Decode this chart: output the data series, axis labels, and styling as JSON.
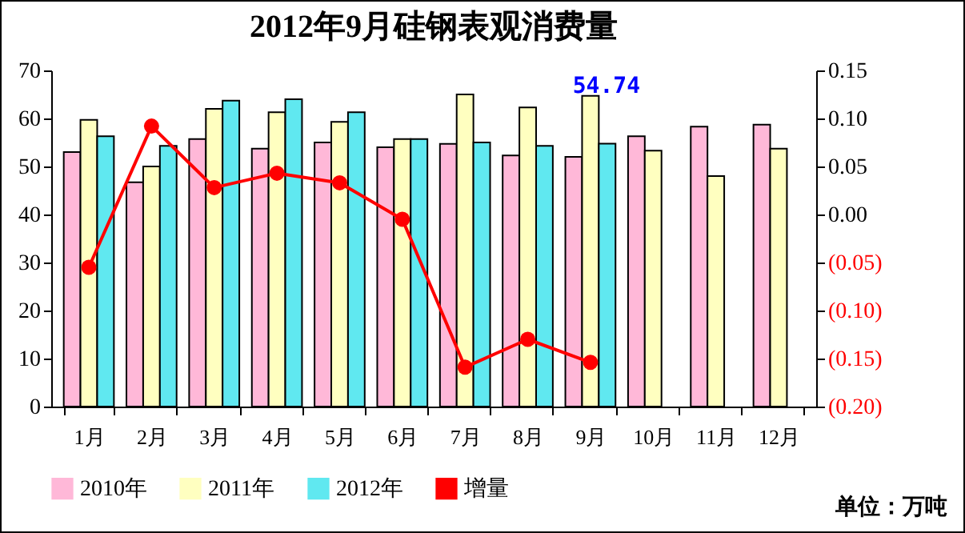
{
  "chart_data": {
    "type": "bar",
    "title": "2012年9月硅钢表观消费量",
    "categories": [
      "1月",
      "2月",
      "3月",
      "4月",
      "5月",
      "6月",
      "7月",
      "8月",
      "9月",
      "10月",
      "11月",
      "12月"
    ],
    "series": [
      {
        "name": "2010年",
        "color": "#ffb8d8",
        "values": [
          53.0,
          46.7,
          55.7,
          53.7,
          55.0,
          54.0,
          54.7,
          52.3,
          52.0,
          56.3,
          58.3,
          58.7
        ]
      },
      {
        "name": "2011年",
        "color": "#ffffc0",
        "values": [
          59.7,
          50.0,
          62.0,
          61.3,
          59.3,
          55.7,
          65.0,
          62.3,
          64.7,
          53.3,
          48.0,
          53.7
        ]
      },
      {
        "name": "2012年",
        "color": "#60e8f0",
        "values": [
          56.3,
          54.3,
          63.7,
          64.0,
          61.3,
          55.7,
          55.0,
          54.3,
          54.74,
          null,
          null,
          null
        ]
      },
      {
        "name": "增量",
        "type": "line",
        "axis": "y2",
        "color": "#ff0000",
        "values": [
          -0.055,
          0.092,
          0.028,
          0.043,
          0.033,
          -0.005,
          -0.159,
          -0.13,
          -0.154,
          null,
          null,
          null
        ]
      }
    ],
    "ylim": [
      0,
      70
    ],
    "yticks": [
      0,
      10,
      20,
      30,
      40,
      50,
      60,
      70
    ],
    "y2lim": [
      -0.2,
      0.15
    ],
    "y2ticks": [
      {
        "value": -0.2,
        "label": "(0.20)"
      },
      {
        "value": -0.15,
        "label": "(0.15)"
      },
      {
        "value": -0.1,
        "label": "(0.10)"
      },
      {
        "value": -0.05,
        "label": "(0.05)"
      },
      {
        "value": 0,
        "label": "0.00"
      },
      {
        "value": 0.05,
        "label": "0.05"
      },
      {
        "value": 0.1,
        "label": "0.10"
      },
      {
        "value": 0.15,
        "label": "0.15"
      }
    ],
    "annotations": [
      {
        "text": "54.74",
        "x": "9月",
        "y": 54.74
      },
      "单位：万吨"
    ],
    "legend": "bottom",
    "marker": "circle",
    "grid": false
  }
}
